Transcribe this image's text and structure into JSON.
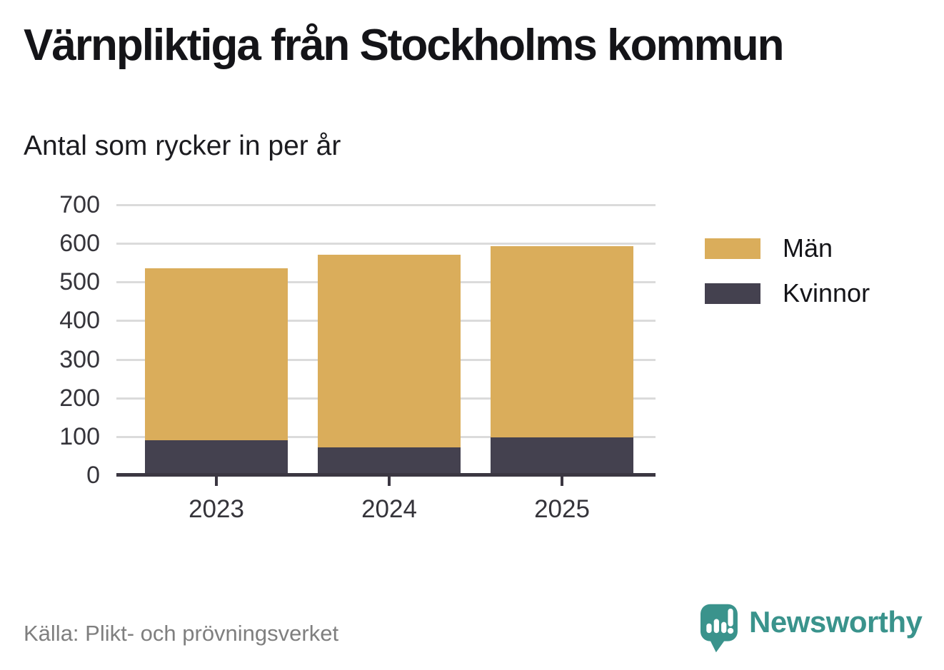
{
  "chart_data": {
    "type": "bar",
    "stacked": true,
    "title": "Värnpliktiga från Stockholms kommun",
    "subtitle": "Antal som rycker in per år",
    "source": "Källa: Plikt- och prövningsverket",
    "categories": [
      "2023",
      "2024",
      "2025"
    ],
    "series": [
      {
        "name": "Män",
        "color": "#DAAD5B",
        "values": [
          445,
          498,
          495
        ]
      },
      {
        "name": "Kvinnor",
        "color": "#44414F",
        "values": [
          90,
          72,
          97
        ]
      }
    ],
    "totals": [
      535,
      570,
      592
    ],
    "xlabel": "",
    "ylabel": "",
    "ylim": [
      0,
      700
    ],
    "yticks": [
      0,
      100,
      200,
      300,
      400,
      500,
      600,
      700
    ],
    "grid": "horizontal",
    "legend_position": "right"
  },
  "footer": {
    "brand": "Newsworthy"
  },
  "colors": {
    "men": "#DAAD5B",
    "women": "#44414F",
    "grid": "#DBDBDB",
    "axis": "#3B3742",
    "brand_teal": "#3A938C",
    "muted_text": "#7F7F7F",
    "title_text": "#141418"
  }
}
